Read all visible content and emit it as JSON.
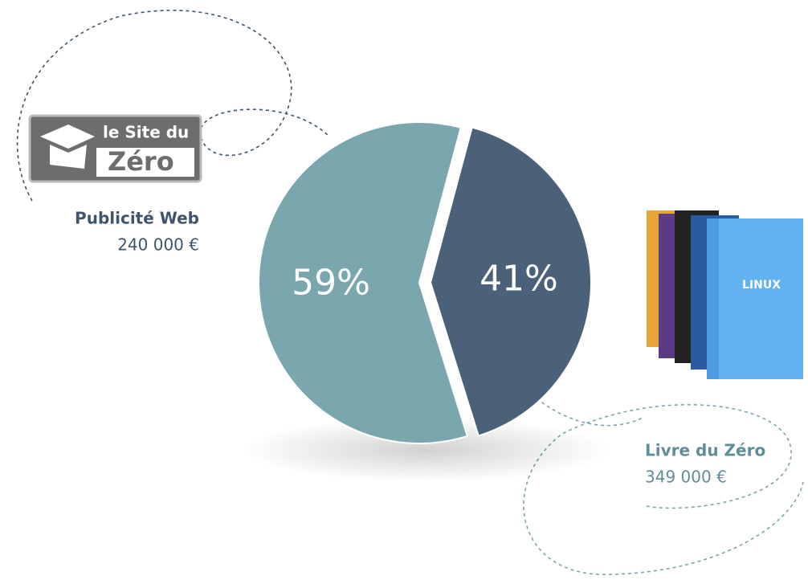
{
  "chart_data": {
    "type": "pie",
    "categories": [
      "Publicité Web",
      "Livre du Zéro"
    ],
    "values": [
      41,
      59
    ],
    "value_labels": [
      "41%",
      "59%"
    ],
    "amount_labels": [
      "240 000 €",
      "349 000 €"
    ],
    "colors": [
      "#4b6079",
      "#7aa6ae"
    ],
    "logo": {
      "line1": "le Site du",
      "line2": "Zéro"
    },
    "book_title": "LINUX"
  }
}
